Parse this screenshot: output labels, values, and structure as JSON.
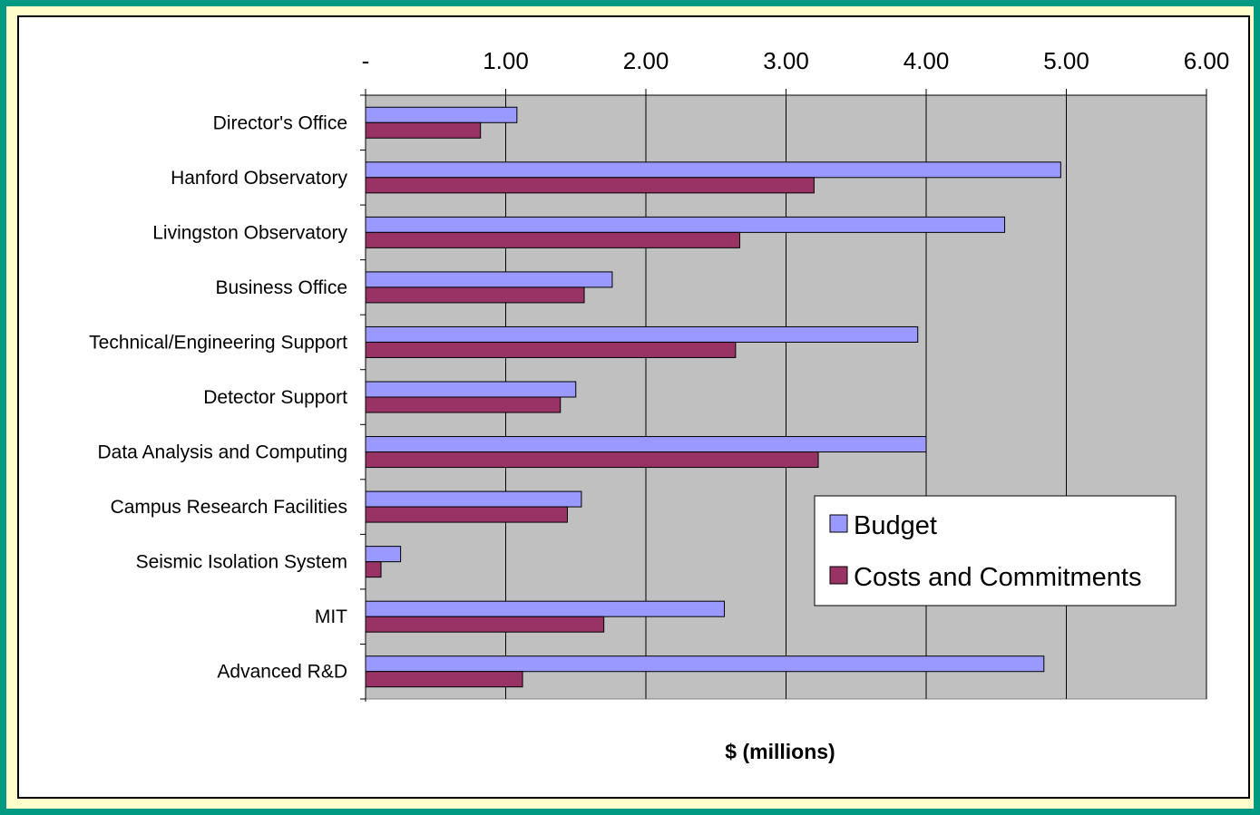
{
  "chart_data": {
    "type": "bar",
    "orientation": "horizontal",
    "categories": [
      "Director's Office",
      "Hanford Observatory",
      "Livingston Observatory",
      "Business Office",
      "Technical/Engineering Support",
      "Detector Support",
      "Data Analysis and Computing",
      "Campus Research Facilities",
      "Seismic Isolation System",
      "MIT",
      "Advanced R&D"
    ],
    "series": [
      {
        "name": "Budget",
        "color": "#9999ff",
        "values": [
          1.08,
          4.96,
          4.56,
          1.76,
          3.94,
          1.5,
          4.0,
          1.54,
          0.25,
          2.56,
          4.84
        ]
      },
      {
        "name": "Costs and Commitments",
        "color": "#993366",
        "values": [
          0.82,
          3.2,
          2.67,
          1.56,
          2.64,
          1.39,
          3.23,
          1.44,
          0.11,
          1.7,
          1.12
        ]
      }
    ],
    "xlim": [
      0,
      6
    ],
    "x_ticks": [
      "-",
      "1.00",
      "2.00",
      "3.00",
      "4.00",
      "5.00",
      "6.00"
    ],
    "xlabel": "$ (millions)",
    "ylabel": "",
    "title": "",
    "grid": "vertical major gridlines",
    "plot_background": "#c0c0c0",
    "legend_position": "lower-right inside plot"
  }
}
